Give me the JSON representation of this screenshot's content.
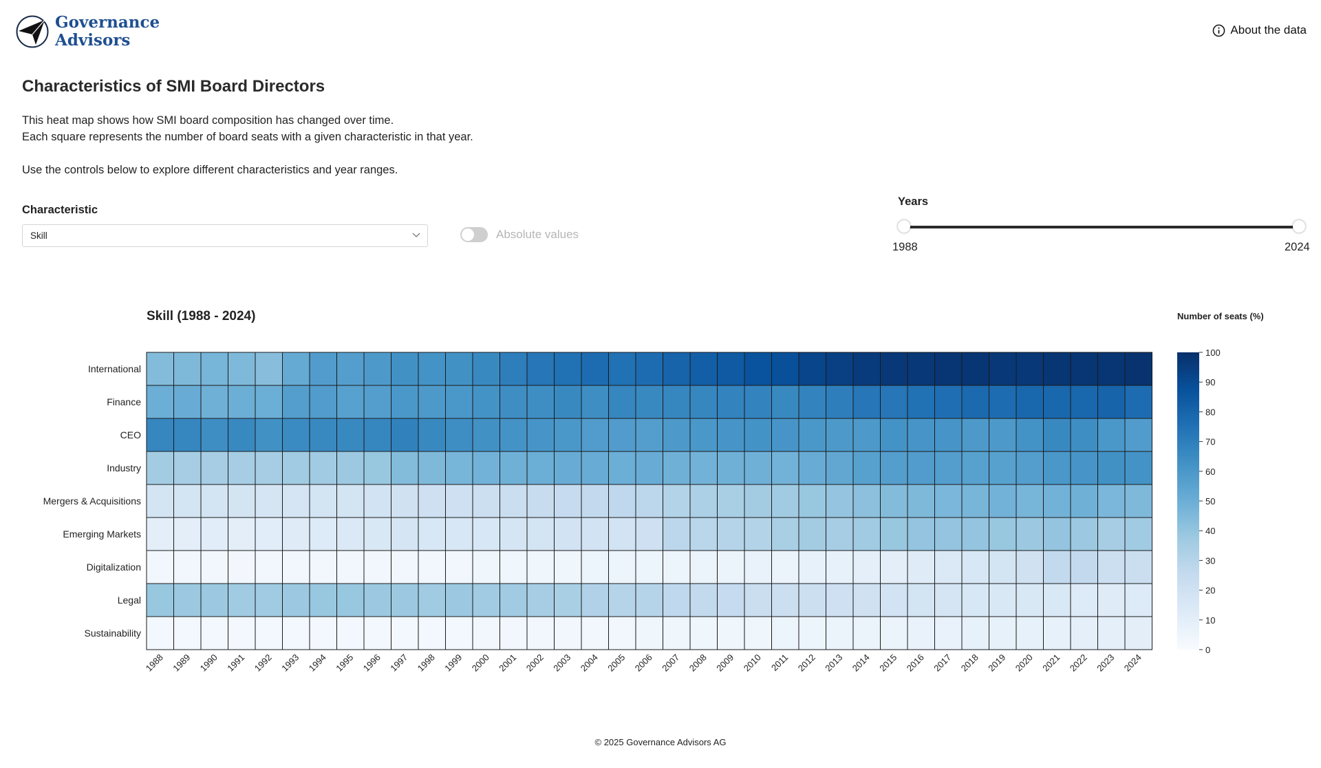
{
  "header": {
    "logo_line1": "Governance",
    "logo_line2": "Advisors",
    "about_label": "About the data"
  },
  "page": {
    "title": "Characteristics of SMI Board Directors",
    "description": [
      "This heat map shows how SMI board composition has changed over time.",
      "Each square represents the number of board seats with a given characteristic in that year.",
      "Use the controls below to explore different characteristics and year ranges."
    ]
  },
  "controls": {
    "characteristic_label": "Characteristic",
    "characteristic_value": "Skill",
    "toggle_label": "Absolute values",
    "toggle_on": false,
    "years_label": "Years",
    "year_min": "1988",
    "year_max": "2024"
  },
  "chart_data": {
    "type": "heatmap",
    "title": "Skill (1988 - 2024)",
    "legend_title": "Number of seats (%)",
    "scale_range": [
      0,
      100
    ],
    "legend_ticks": [
      0,
      10,
      20,
      30,
      40,
      50,
      60,
      70,
      80,
      90,
      100
    ],
    "color_low": "#f7fbff",
    "color_high": "#08306b",
    "x": [
      "1988",
      "1989",
      "1990",
      "1991",
      "1992",
      "1993",
      "1994",
      "1995",
      "1996",
      "1997",
      "1998",
      "1999",
      "2000",
      "2001",
      "2002",
      "2003",
      "2004",
      "2005",
      "2006",
      "2007",
      "2008",
      "2009",
      "2010",
      "2011",
      "2012",
      "2013",
      "2014",
      "2015",
      "2016",
      "2017",
      "2018",
      "2019",
      "2020",
      "2021",
      "2022",
      "2023",
      "2024"
    ],
    "y": [
      "International",
      "Finance",
      "CEO",
      "Industry",
      "Mergers & Acquisitions",
      "Emerging Markets",
      "Digitalization",
      "Legal",
      "Sustainability"
    ],
    "values": [
      [
        44,
        45,
        47,
        45,
        43,
        52,
        58,
        57,
        59,
        63,
        62,
        63,
        66,
        70,
        73,
        75,
        77,
        75,
        77,
        80,
        82,
        84,
        87,
        88,
        92,
        94,
        96,
        97,
        97,
        98,
        98,
        97,
        97,
        98,
        98,
        98,
        99
      ],
      [
        50,
        51,
        49,
        50,
        50,
        57,
        58,
        56,
        57,
        60,
        59,
        60,
        62,
        64,
        64,
        66,
        64,
        67,
        66,
        67,
        67,
        68,
        68,
        66,
        68,
        70,
        73,
        73,
        75,
        76,
        78,
        77,
        79,
        79,
        79,
        80,
        77
      ],
      [
        67,
        67,
        64,
        66,
        63,
        65,
        66,
        66,
        67,
        69,
        66,
        64,
        63,
        62,
        61,
        60,
        58,
        58,
        57,
        59,
        60,
        61,
        62,
        61,
        60,
        59,
        59,
        62,
        61,
        61,
        59,
        59,
        62,
        66,
        64,
        60,
        58
      ],
      [
        36,
        35,
        35,
        35,
        35,
        37,
        37,
        38,
        39,
        44,
        45,
        47,
        48,
        49,
        50,
        51,
        51,
        50,
        51,
        49,
        48,
        49,
        49,
        48,
        51,
        53,
        56,
        57,
        58,
        57,
        56,
        56,
        57,
        60,
        61,
        63,
        62
      ],
      [
        18,
        18,
        18,
        18,
        17,
        17,
        18,
        18,
        19,
        20,
        21,
        21,
        22,
        23,
        24,
        25,
        26,
        27,
        28,
        31,
        33,
        34,
        36,
        37,
        39,
        40,
        42,
        44,
        45,
        46,
        47,
        48,
        47,
        48,
        49,
        46,
        45
      ],
      [
        10,
        10,
        11,
        10,
        11,
        12,
        13,
        14,
        15,
        17,
        16,
        16,
        16,
        17,
        18,
        19,
        19,
        19,
        21,
        28,
        29,
        30,
        31,
        34,
        36,
        35,
        37,
        39,
        40,
        40,
        40,
        39,
        38,
        40,
        38,
        35,
        37
      ],
      [
        3,
        3,
        3,
        3,
        3,
        3,
        3,
        3,
        3,
        3,
        3,
        3,
        4,
        4,
        4,
        4,
        5,
        5,
        5,
        5,
        6,
        6,
        7,
        6,
        8,
        8,
        9,
        10,
        12,
        14,
        16,
        18,
        20,
        26,
        26,
        22,
        23
      ],
      [
        39,
        38,
        38,
        37,
        37,
        38,
        39,
        39,
        38,
        38,
        37,
        38,
        37,
        37,
        35,
        34,
        32,
        30,
        30,
        27,
        26,
        25,
        23,
        22,
        22,
        21,
        20,
        19,
        18,
        17,
        16,
        15,
        15,
        15,
        13,
        12,
        13
      ],
      [
        2,
        2,
        2,
        2,
        2,
        2,
        2,
        2,
        2,
        2,
        2,
        2,
        3,
        3,
        3,
        3,
        3,
        3,
        4,
        4,
        4,
        4,
        4,
        5,
        5,
        6,
        6,
        6,
        7,
        7,
        8,
        8,
        8,
        8,
        9,
        9,
        10
      ]
    ]
  },
  "footer": {
    "copyright": "© 2025 Governance Advisors AG"
  }
}
